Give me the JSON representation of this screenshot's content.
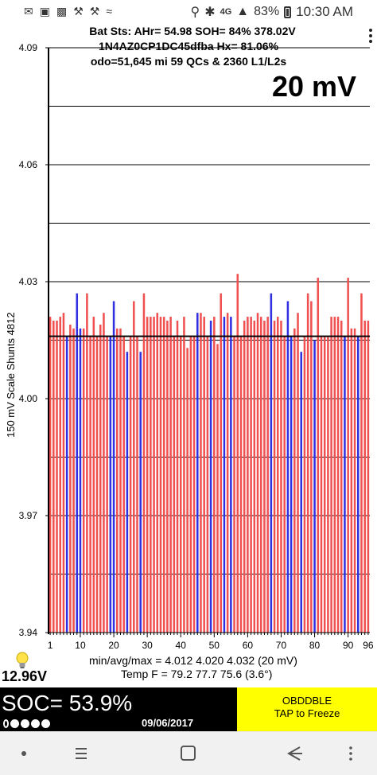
{
  "status_bar": {
    "network": "4G",
    "battery": "83%",
    "time": "10:30 AM"
  },
  "header": {
    "line1": "Bat Sts:  AHr= 54.98  SOH= 84%   378.02V",
    "line2": "1N4AZ0CP1DC45dfba   Hx= 81.06%",
    "line3": "odo=51,645 mi 59 QCs & 2360 L1/L2s"
  },
  "scale_label": "20 mV",
  "y_axis_label": "150 mV Scale   Shunts 4812",
  "chart_data": {
    "type": "bar",
    "title": "",
    "ylabel": "150 mV Scale   Shunts 4812",
    "xlabel": "",
    "ylim": [
      3.94,
      4.09
    ],
    "y_ticks": [
      "3.94",
      "3.97",
      "4.00",
      "4.03",
      "4.06",
      "4.09"
    ],
    "x_ticks": [
      "1",
      "10",
      "20",
      "30",
      "40",
      "50",
      "60",
      "70",
      "80",
      "90",
      "96"
    ],
    "baseline": 4.016,
    "red_color": "#f05050",
    "blue_color": "#3030e0",
    "cells": [
      1,
      96
    ],
    "values": [
      4.021,
      4.02,
      4.02,
      4.021,
      4.022,
      4.016,
      4.019,
      4.018,
      4.027,
      4.018,
      4.018,
      4.027,
      4.016,
      4.021,
      4.016,
      4.019,
      4.022,
      4.016,
      4.016,
      4.025,
      4.018,
      4.018,
      4.016,
      4.012,
      4.016,
      4.025,
      4.016,
      4.012,
      4.027,
      4.021,
      4.021,
      4.021,
      4.022,
      4.021,
      4.021,
      4.02,
      4.021,
      4.016,
      4.02,
      4.016,
      4.021,
      4.013,
      4.016,
      4.016,
      4.022,
      4.022,
      4.021,
      4.016,
      4.02,
      4.021,
      4.014,
      4.027,
      4.021,
      4.022,
      4.021,
      4.016,
      4.032,
      4.016,
      4.02,
      4.021,
      4.021,
      4.02,
      4.022,
      4.021,
      4.02,
      4.021,
      4.027,
      4.02,
      4.021,
      4.02,
      4.016,
      4.025,
      4.016,
      4.018,
      4.022,
      4.012,
      4.016,
      4.027,
      4.025,
      4.015,
      4.031,
      4.016,
      4.016,
      4.016,
      4.021,
      4.021,
      4.021,
      4.02,
      4.016,
      4.031,
      4.018,
      4.018,
      4.016,
      4.027,
      4.02,
      4.02
    ],
    "blue_cells": [
      6,
      9,
      10,
      19,
      20,
      24,
      28,
      45,
      49,
      53,
      55,
      67,
      72,
      73,
      76,
      80,
      89,
      93
    ]
  },
  "footer": {
    "minavgmax": "min/avg/max = 4.012  4.020  4.032  (20 mV)",
    "temp": "Temp F = 79.2  77.7  75.6  (3.6°)",
    "voltage": "12.96V"
  },
  "soc": {
    "text": "SOC= 53.9%",
    "date": "09/06/2017",
    "dots_filled": 4,
    "dots_total": 5
  },
  "freeze_button": {
    "line1": "OBDDBLE",
    "line2": "TAP to Freeze"
  }
}
